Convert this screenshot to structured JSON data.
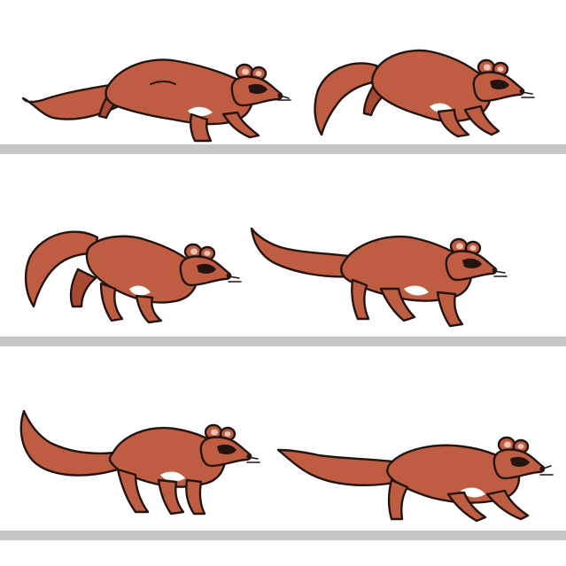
{
  "palette": {
    "fur": "#bf5d43",
    "fur_shade": "#a84a33",
    "outline": "#241410",
    "belly": "#ffffff",
    "ground": "#c6c6c6",
    "background": "#ffffff"
  },
  "animation": {
    "subject": "marten-run-cycle",
    "frame_count": 6,
    "rows": 3,
    "frames_per_row": 2,
    "frames": [
      {
        "pose": "stretch"
      },
      {
        "pose": "gather"
      },
      {
        "pose": "tuck"
      },
      {
        "pose": "reach"
      },
      {
        "pose": "push"
      },
      {
        "pose": "extend"
      }
    ]
  }
}
